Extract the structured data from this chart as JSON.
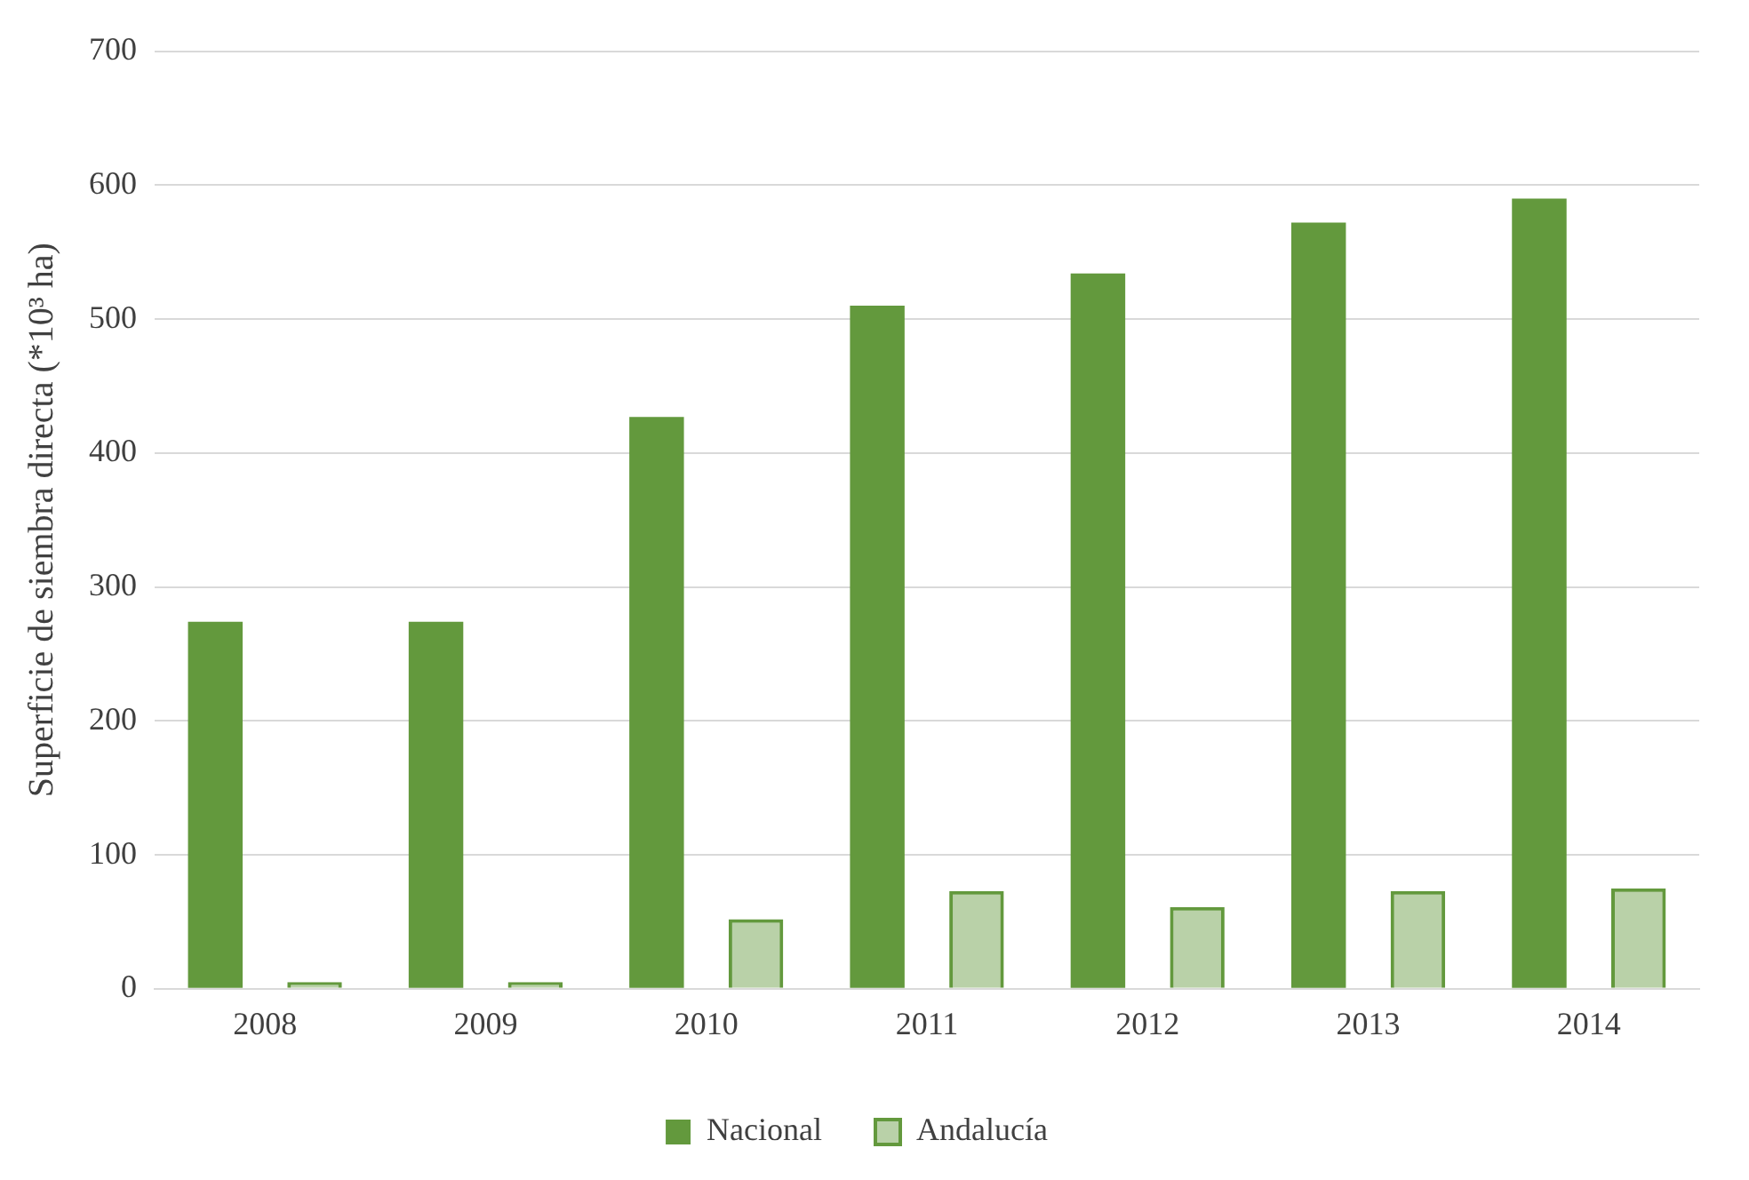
{
  "chart_data": {
    "type": "bar",
    "ylabel": "Superficie de siembra directa (*10³ ha)",
    "categories": [
      "2008",
      "2009",
      "2010",
      "2011",
      "2012",
      "2013",
      "2014"
    ],
    "series": [
      {
        "name": "Nacional",
        "color": "#63993d",
        "values": [
          274,
          274,
          427,
          510,
          534,
          572,
          590
        ]
      },
      {
        "name": "Andalucía",
        "color": "#63993d",
        "values": [
          5,
          5,
          52,
          73,
          61,
          73,
          75
        ]
      }
    ],
    "ylim": [
      0,
      700
    ],
    "yticks": [
      0,
      100,
      200,
      300,
      400,
      500,
      600,
      700
    ],
    "grid": "y",
    "legend": "bottom"
  }
}
